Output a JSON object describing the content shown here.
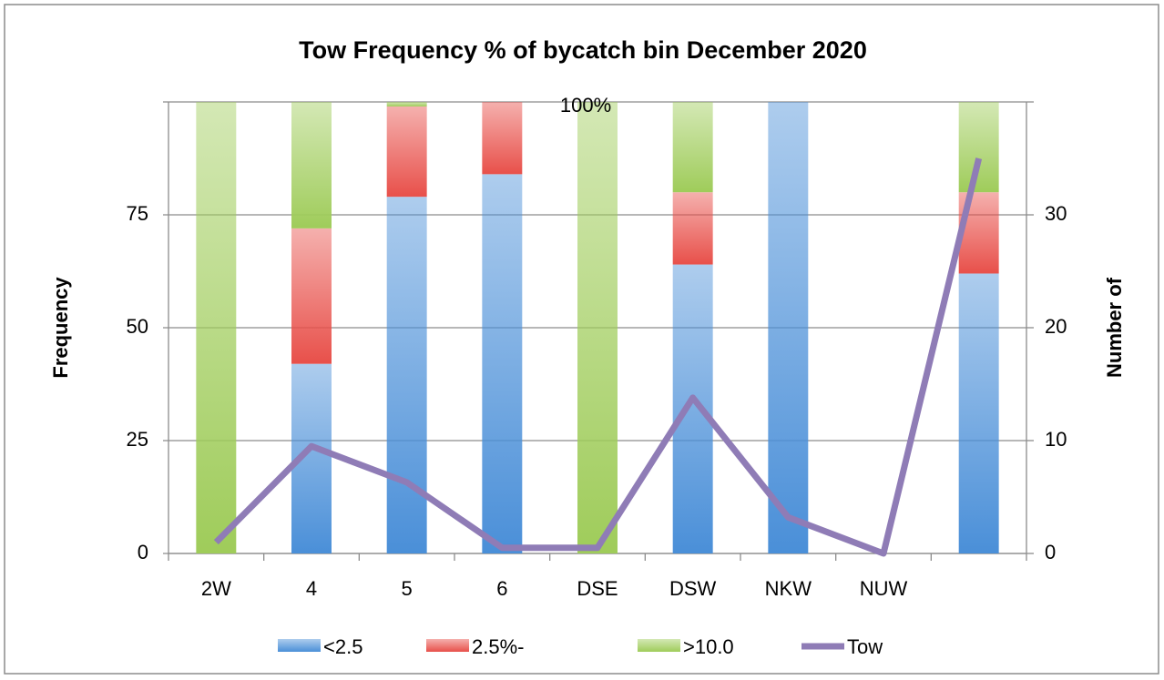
{
  "chart_data": {
    "type": "bar",
    "title": "Tow Frequency % of bycatch bin December 2020",
    "y_label": "Frequency",
    "y2_label": "Number of",
    "annotations": [
      "100%"
    ],
    "categories": [
      "2W",
      "4",
      "5",
      "6",
      "DSE",
      "DSW",
      "NKW",
      "NUW",
      null
    ],
    "series": [
      {
        "name": "<2.5",
        "type": "bar",
        "color": "#4a8fd8",
        "values": [
          0,
          42,
          79,
          84,
          0,
          64,
          100,
          0,
          62
        ]
      },
      {
        "name": "2.5%-",
        "type": "bar",
        "color": "#e8504a",
        "values": [
          0,
          30,
          20,
          16,
          0,
          16,
          0,
          0,
          18
        ]
      },
      {
        "name": ">10.0",
        "type": "bar",
        "color": "#9fcc5a",
        "values": [
          100,
          28,
          1,
          0,
          100,
          20,
          0,
          0,
          20
        ]
      },
      {
        "name": "Tow",
        "type": "line",
        "axis": "y2",
        "color": "#8f7cb6",
        "values": [
          1,
          9.5,
          6.3,
          0.5,
          0.5,
          13.8,
          3.2,
          0,
          35
        ]
      }
    ],
    "ylim": [
      0,
      100
    ],
    "yticks": [
      0,
      25,
      50,
      75
    ],
    "y2lim": [
      0,
      40
    ],
    "y2ticks": [
      0,
      10,
      20,
      30
    ],
    "grid": true,
    "legend": "bottom"
  }
}
